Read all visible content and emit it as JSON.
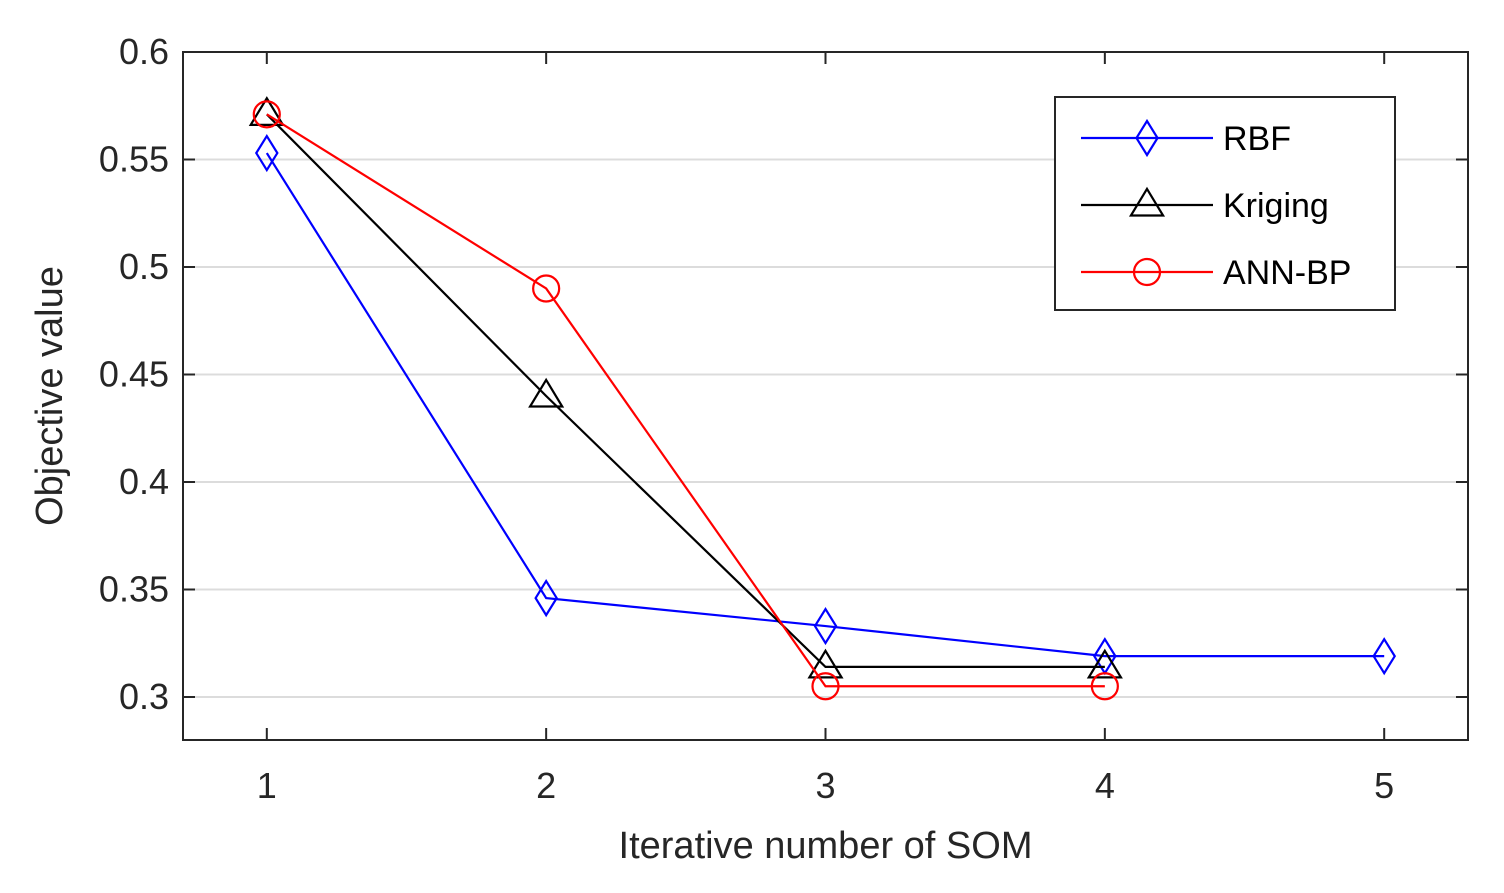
{
  "chart_data": {
    "type": "line",
    "title": "",
    "xlabel": "Iterative number of SOM",
    "ylabel": "Objective value",
    "xlim": [
      0.7,
      5.3
    ],
    "ylim": [
      0.28,
      0.6
    ],
    "xticks": [
      1,
      2,
      3,
      4,
      5
    ],
    "yticks": [
      0.3,
      0.35,
      0.4,
      0.45,
      0.5,
      0.55,
      0.6
    ],
    "ytick_labels": [
      "0.3",
      "0.35",
      "0.4",
      "0.45",
      "0.5",
      "0.55",
      "0.6"
    ],
    "grid": "horizontal",
    "legend_position": "top-right",
    "series": [
      {
        "name": "RBF",
        "color": "#0000ff",
        "marker": "diamond",
        "x": [
          1,
          2,
          3,
          4,
          5
        ],
        "y": [
          0.553,
          0.346,
          0.333,
          0.319,
          0.319
        ]
      },
      {
        "name": "Kriging",
        "color": "#000000",
        "marker": "triangle",
        "x": [
          1,
          2,
          3,
          4
        ],
        "y": [
          0.571,
          0.44,
          0.314,
          0.314
        ]
      },
      {
        "name": "ANN-BP",
        "color": "#ff0000",
        "marker": "circle",
        "x": [
          1,
          2,
          3,
          4
        ],
        "y": [
          0.571,
          0.49,
          0.305,
          0.305
        ]
      }
    ]
  }
}
